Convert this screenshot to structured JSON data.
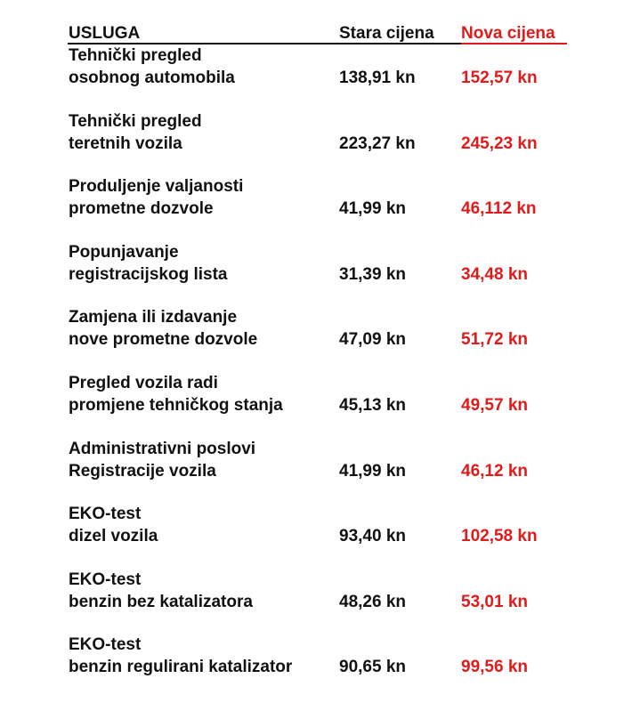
{
  "header": {
    "service": "USLUGA",
    "old_price": "Stara cijena",
    "new_price": "Nova cijena"
  },
  "colors": {
    "text": "#111111",
    "accent": "#e01b1b"
  },
  "rows": [
    {
      "line1": "Tehnički pregled",
      "line2": "osobnog automobila",
      "old": "138,91 kn",
      "new": "152,57 kn"
    },
    {
      "line1": "Tehnički pregled",
      "line2": "teretnih vozila",
      "old": "223,27 kn",
      "new": "245,23 kn"
    },
    {
      "line1": "Produljenje valjanosti",
      "line2": "prometne dozvole",
      "old": "41,99 kn",
      "new": "46,112 kn"
    },
    {
      "line1": "Popunjavanje",
      "line2": "registracijskog lista",
      "old": "31,39 kn",
      "new": "34,48 kn"
    },
    {
      "line1": "Zamjena ili izdavanje",
      "line2": "nove prometne dozvole",
      "old": "47,09 kn",
      "new": "51,72 kn"
    },
    {
      "line1": "Pregled vozila radi",
      "line2": "promjene tehničkog stanja",
      "old": "45,13 kn",
      "new": "49,57 kn"
    },
    {
      "line1": "Administrativni poslovi",
      "line2": "Registracije vozila",
      "old": "41,99 kn",
      "new": "46,12 kn"
    },
    {
      "line1": "EKO-test",
      "line2": "dizel vozila",
      "old": "93,40 kn",
      "new": "102,58 kn"
    },
    {
      "line1": "EKO-test",
      "line2": "benzin bez katalizatora",
      "old": "48,26 kn",
      "new": "53,01 kn"
    },
    {
      "line1": "EKO-test",
      "line2": "benzin regulirani katalizator",
      "old": "90,65 kn",
      "new": "99,56 kn"
    }
  ]
}
